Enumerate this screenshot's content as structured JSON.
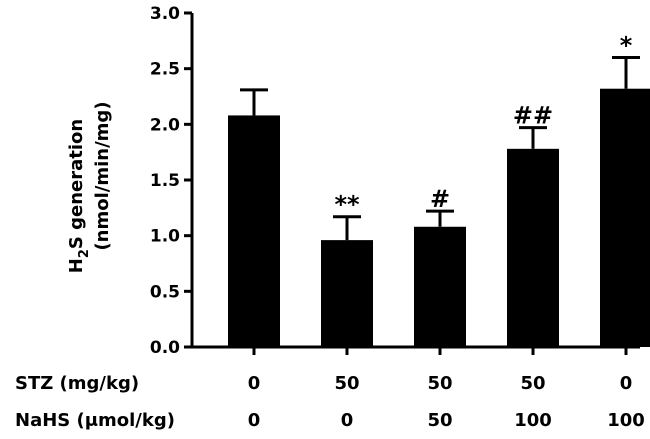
{
  "chart_data": {
    "type": "bar",
    "title": "",
    "xlabel": "",
    "ylabel_line1_parts": [
      "H",
      "2",
      "S generation"
    ],
    "ylabel_line2": "(nmol/min/mg)",
    "ylim": [
      0,
      3.0
    ],
    "yticks": [
      "0.0",
      "0.5",
      "1.0",
      "1.5",
      "2.0",
      "2.5",
      "3.0"
    ],
    "ytick_values": [
      0,
      0.5,
      1.0,
      1.5,
      2.0,
      2.5,
      3.0
    ],
    "values": [
      2.08,
      0.96,
      1.08,
      1.78,
      2.32
    ],
    "errors": [
      0.23,
      0.21,
      0.14,
      0.19,
      0.28
    ],
    "annotations": [
      "",
      "**",
      "#",
      "##",
      "*"
    ],
    "row_labels": [
      {
        "label": "STZ (mg/kg)",
        "values": [
          "0",
          "50",
          "50",
          "50",
          "0"
        ]
      },
      {
        "label": "NaHS (μmol/kg)",
        "values": [
          "0",
          "0",
          "50",
          "100",
          "100"
        ]
      }
    ],
    "bar_color": "#000000"
  }
}
